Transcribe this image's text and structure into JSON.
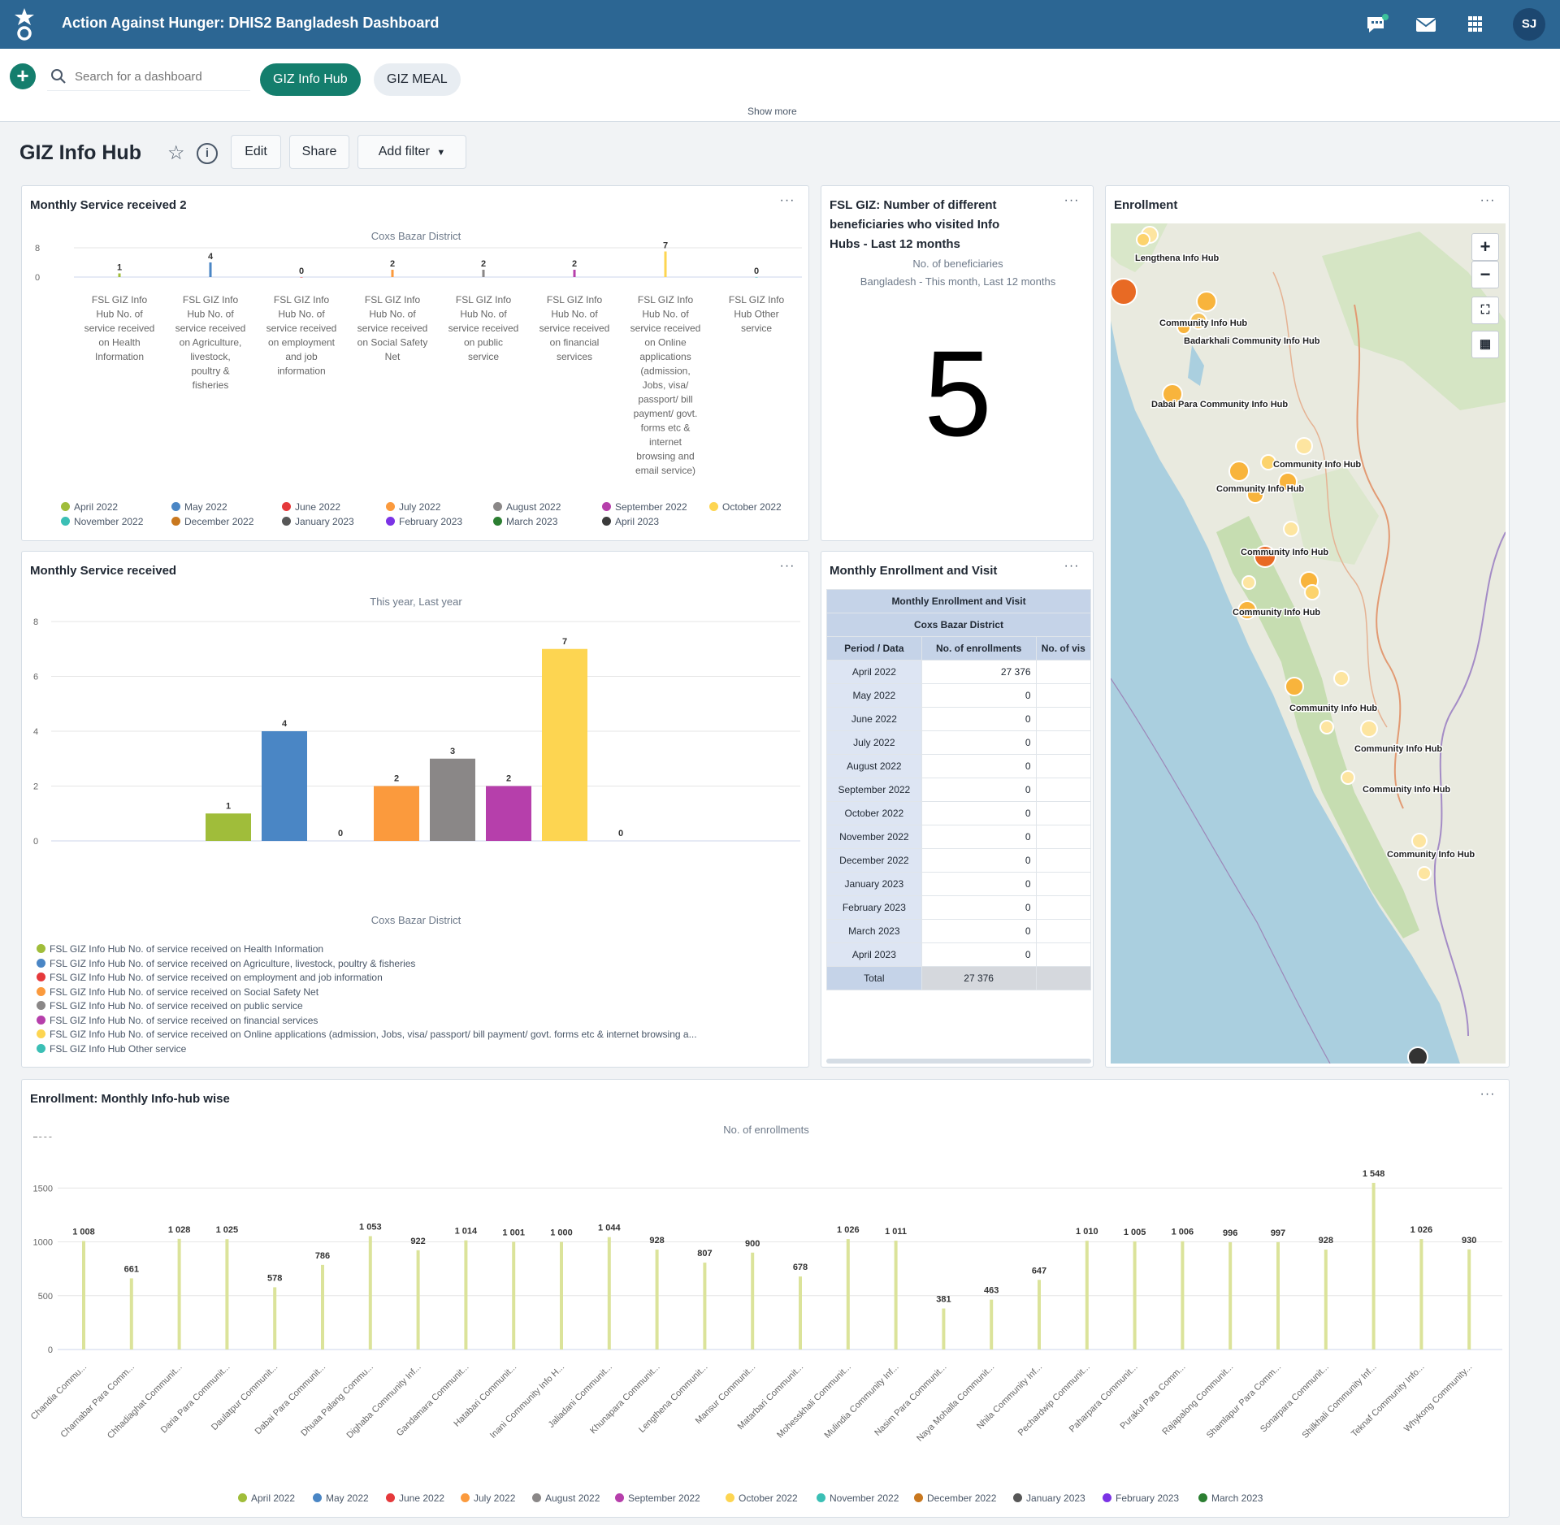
{
  "header": {
    "title": "Action Against Hunger: DHIS2 Bangladesh Dashboard",
    "user_initials": "SJ"
  },
  "controlbar": {
    "search_placeholder": "Search for a dashboard",
    "chips": [
      "GIZ Info Hub",
      "GIZ MEAL"
    ],
    "show_more": "Show more"
  },
  "dashboard": {
    "title": "GIZ Info Hub",
    "edit_label": "Edit",
    "share_label": "Share",
    "add_filter_label": "Add filter"
  },
  "colors": {
    "header": "#2c6693",
    "accent": "#147e6d"
  },
  "card1": {
    "title": "Monthly Service received 2",
    "subtitle": "Coxs Bazar District",
    "menu": "···"
  },
  "card2": {
    "title_l1": "FSL GIZ: Number of different",
    "title_l2": "beneficiaries who visited Info",
    "title_l3": "Hubs - Last 12 months",
    "sub1": "No. of beneficiaries",
    "sub2": "Bangladesh - This month, Last 12 months",
    "value": "5",
    "menu": "···"
  },
  "card3": {
    "title": "Enrollment",
    "menu": "···"
  },
  "card4": {
    "title": "Monthly Service received",
    "subtitle": "This year, Last year",
    "xlabel": "Coxs Bazar District",
    "menu": "···"
  },
  "card5": {
    "title": "Monthly Enrollment and Visit",
    "table_title": "Monthly Enrollment and Visit",
    "table_sub": "Coxs Bazar District",
    "col_period": "Period / Data",
    "col_enroll": "No. of enrollments",
    "col_visit": "No. of vis",
    "rows": [
      {
        "period": "April 2022",
        "value": "27 376"
      },
      {
        "period": "May 2022",
        "value": "0"
      },
      {
        "period": "June 2022",
        "value": "0"
      },
      {
        "period": "July 2022",
        "value": "0"
      },
      {
        "period": "August 2022",
        "value": "0"
      },
      {
        "period": "September 2022",
        "value": "0"
      },
      {
        "period": "October 2022",
        "value": "0"
      },
      {
        "period": "November 2022",
        "value": "0"
      },
      {
        "period": "December 2022",
        "value": "0"
      },
      {
        "period": "January 2023",
        "value": "0"
      },
      {
        "period": "February 2023",
        "value": "0"
      },
      {
        "period": "March 2023",
        "value": "0"
      },
      {
        "period": "April 2023",
        "value": "0"
      }
    ],
    "total_label": "Total",
    "total_value": "27 376",
    "menu": "···"
  },
  "card6": {
    "title": "Enrollment: Monthly Info-hub wise",
    "subtitle": "No. of enrollments",
    "menu": "···"
  },
  "map": {
    "labels": [
      "Lengthena Info Hub",
      "Community Info Hub",
      "Badarkhali Community Info Hub",
      "Dabai Para Community Info Hub",
      "Community Info Hub",
      "Community Info Hub",
      "Community Info Hub",
      "Community Info Hub",
      "Community Info Hub",
      "Community Info Hub",
      "Community Info Hub",
      "Community Info Hub"
    ],
    "controls": [
      "+",
      "−"
    ]
  },
  "chart_data": [
    {
      "type": "bar",
      "title": "Monthly Service received 2",
      "subtitle": "Coxs Bazar District",
      "categories": [
        "FSL GIZ Info Hub No. of service received on Health Information",
        "FSL GIZ Info Hub No. of service received on Agriculture, livestock, poultry & fisheries",
        "FSL GIZ Info Hub No. of service received on employment and job information",
        "FSL GIZ Info Hub No. of service received on Social Safety Net",
        "FSL GIZ Info Hub No. of service received on public service",
        "FSL GIZ Info Hub No. of service received on financial services",
        "FSL GIZ Info Hub No. of service received on Online applications (admission, Jobs, visa/ passport/ bill payment/ govt. forms etc & internet browsing and email service)",
        "FSL GIZ Info Hub Other service"
      ],
      "category_lines": [
        [
          "FSL GIZ Info",
          "Hub No. of",
          "service received",
          "on Health",
          "Information"
        ],
        [
          "FSL GIZ Info",
          "Hub No. of",
          "service received",
          "on Agriculture,",
          "livestock,",
          "poultry &",
          "fisheries"
        ],
        [
          "FSL GIZ Info",
          "Hub No. of",
          "service received",
          "on employment",
          "and job",
          "information"
        ],
        [
          "FSL GIZ Info",
          "Hub No. of",
          "service received",
          "on Social Safety",
          "Net"
        ],
        [
          "FSL GIZ Info",
          "Hub No. of",
          "service received",
          "on public",
          "service"
        ],
        [
          "FSL GIZ Info",
          "Hub No. of",
          "service received",
          "on financial",
          "services"
        ],
        [
          "FSL GIZ Info",
          "Hub No. of",
          "service received",
          "on Online",
          "applications",
          "(admission,",
          "Jobs, visa/",
          "passport/ bill",
          "payment/ govt.",
          "forms etc &",
          "internet",
          "browsing and",
          "email service)"
        ],
        [
          "FSL GIZ Info",
          "Hub Other",
          "service"
        ]
      ],
      "yticks": [
        "0",
        "8"
      ],
      "ylim": [
        0,
        8
      ],
      "totals": [
        1,
        4,
        0,
        2,
        2,
        2,
        7,
        0
      ],
      "series": [
        {
          "name": "April 2022",
          "color": "#a0bd3a"
        },
        {
          "name": "May 2022",
          "color": "#4a86c5"
        },
        {
          "name": "June 2022",
          "color": "#e5393b"
        },
        {
          "name": "July 2022",
          "color": "#fb9a3d"
        },
        {
          "name": "August 2022",
          "color": "#8a8787"
        },
        {
          "name": "September 2022",
          "color": "#b63fab"
        },
        {
          "name": "October 2022",
          "color": "#fdd551"
        },
        {
          "name": "November 2022",
          "color": "#3bbfb5"
        },
        {
          "name": "December 2022",
          "color": "#c9781f"
        },
        {
          "name": "January 2023",
          "color": "#575757"
        },
        {
          "name": "February 2023",
          "color": "#7b33e5"
        },
        {
          "name": "March 2023",
          "color": "#2b7e31"
        },
        {
          "name": "April 2023",
          "color": "#3b3b3b"
        }
      ]
    },
    {
      "type": "bar",
      "title": "Monthly Service received",
      "subtitle": "This year, Last year",
      "xlabel": "Coxs Bazar District",
      "ylim": [
        0,
        8
      ],
      "yticks": [
        0,
        2,
        4,
        6,
        8
      ],
      "series": [
        {
          "name": "FSL GIZ Info Hub No. of service received on Health Information",
          "value": 1,
          "color": "#a0bd3a"
        },
        {
          "name": "FSL GIZ Info Hub No. of service received on Agriculture, livestock, poultry & fisheries",
          "value": 4,
          "color": "#4a86c5"
        },
        {
          "name": "FSL GIZ Info Hub No. of service received on employment and job information",
          "value": 0,
          "color": "#e5393b"
        },
        {
          "name": "FSL GIZ Info Hub No. of service received on Social Safety Net",
          "value": 2,
          "color": "#fb9a3d"
        },
        {
          "name": "FSL GIZ Info Hub No. of service received on public service",
          "value": 3,
          "color": "#8a8787"
        },
        {
          "name": "FSL GIZ Info Hub No. of service received on financial services",
          "value": 2,
          "color": "#b63fab"
        },
        {
          "name": "FSL GIZ Info Hub No. of service received on Online applications (admission, Jobs, visa/ passport/ bill payment/ govt. forms etc & internet browsing a...",
          "value": 7,
          "color": "#fdd551"
        },
        {
          "name": "FSL GIZ Info Hub Other service",
          "value": 0,
          "color": "#3bbfb5"
        }
      ]
    },
    {
      "type": "bar",
      "title": "Enrollment: Monthly Info-hub wise",
      "subtitle": "No. of enrollments",
      "ylim": [
        0,
        2000
      ],
      "yticks": [
        0,
        500,
        1000,
        1500,
        2000
      ],
      "categories": [
        "Chandia Commu...",
        "Charnabar Para Comm...",
        "Chhadiaghat Communit...",
        "Daria Para Communit...",
        "Daulatpur Communit...",
        "Dabai Para Communit...",
        "Dhuaa Palang Commu...",
        "Dighaba Community Inf...",
        "Gandamara Communit...",
        "Hatabari Communit...",
        "Inani Community Info H...",
        "Jaliadani Communit...",
        "Khunapara Communit...",
        "Lengthena Communit...",
        "Mansur Communit...",
        "Matarbari Communit...",
        "Mohesskhali Communit...",
        "Mulindia Community Inf...",
        "Nasim Para Communit...",
        "Naya Mohalla Communit...",
        "Nhila Community Inf...",
        "Pechardwip Communit...",
        "Paharpara Communit...",
        "Purakul Para Comm...",
        "Rajapalong Communit...",
        "Shamlapur Para Comm...",
        "Sonarpara Communit...",
        "Shilkhali Community Inf...",
        "Teknaf Community Info...",
        "Whykong Community..."
      ],
      "values": [
        1008,
        661,
        1028,
        1025,
        578,
        786,
        1053,
        922,
        1014,
        1001,
        1000,
        1044,
        928,
        807,
        900,
        678,
        1026,
        1011,
        381,
        463,
        647,
        1010,
        1005,
        1006,
        996,
        997,
        928,
        1548,
        1026,
        930
      ],
      "labels": [
        "1 008",
        "661",
        "1 028",
        "1 025",
        "578",
        "786",
        "1 053",
        "922",
        "1 014",
        "1 001",
        "1 000",
        "1 044",
        "928",
        "807",
        "900",
        "678",
        "1 026",
        "1 011",
        "381",
        "463",
        "647",
        "1 010",
        "1 005",
        "1 006",
        "996",
        "997",
        "928",
        "1 548",
        "1 026",
        "930"
      ],
      "series": [
        {
          "name": "April 2022",
          "color": "#a0bd3a"
        },
        {
          "name": "May 2022",
          "color": "#4a86c5"
        },
        {
          "name": "June 2022",
          "color": "#e5393b"
        },
        {
          "name": "July 2022",
          "color": "#fb9a3d"
        },
        {
          "name": "August 2022",
          "color": "#8a8787"
        },
        {
          "name": "September 2022",
          "color": "#b63fab"
        },
        {
          "name": "October 2022",
          "color": "#fdd551"
        },
        {
          "name": "November 2022",
          "color": "#3bbfb5"
        },
        {
          "name": "December 2022",
          "color": "#c9781f"
        },
        {
          "name": "January 2023",
          "color": "#575757"
        },
        {
          "name": "February 2023",
          "color": "#7b33e5"
        },
        {
          "name": "March 2023",
          "color": "#2b7e31"
        }
      ]
    }
  ]
}
